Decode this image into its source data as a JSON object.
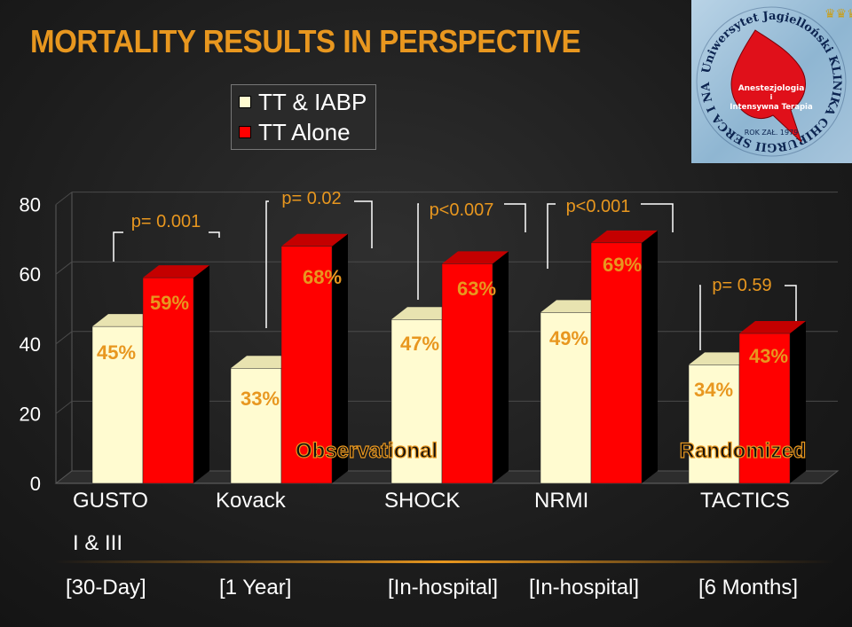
{
  "title": "MORTALITY RESULTS IN PERSPECTIVE",
  "legend": [
    {
      "label": "TT & IABP",
      "color": "#fffbd0"
    },
    {
      "label": "TT Alone",
      "color": "#ff0000"
    }
  ],
  "logo": {
    "ring_text": "Uniwersytet Jagielloński KLINIKA CHIRURGII SERCA I NACZYŃ",
    "line1": "Anestezjologia",
    "line2": "i",
    "line3": "Intensywna Terapia",
    "year": "ROK ZAŁ. 1979"
  },
  "chart_data": {
    "type": "bar",
    "title": "",
    "xlabel": "",
    "ylabel": "",
    "ylim": [
      0,
      80
    ],
    "y_ticks": [
      0,
      20,
      40,
      60,
      80
    ],
    "grid": true,
    "legend_position": "top-center",
    "categories": [
      "GUSTO I & III",
      "Kovack",
      "SHOCK",
      "NRMI",
      "TACTICS"
    ],
    "category_lines": [
      [
        "GUSTO",
        "I & III"
      ],
      [
        "Kovack"
      ],
      [
        "SHOCK"
      ],
      [
        "NRMI"
      ],
      [
        "TACTICS"
      ]
    ],
    "periods": [
      "[30-Day]",
      "[1 Year]",
      "[In-hospital]",
      "[In-hospital]",
      "[6 Months]"
    ],
    "series": [
      {
        "name": "TT & IABP",
        "values": [
          45,
          33,
          47,
          49,
          34
        ],
        "labels": [
          "45%",
          "33%",
          "47%",
          "49%",
          "34%"
        ],
        "color": "#fffbd0"
      },
      {
        "name": "TT Alone",
        "values": [
          59,
          68,
          63,
          69,
          43
        ],
        "labels": [
          "59%",
          "68%",
          "63%",
          "69%",
          "43%"
        ],
        "color": "#ff0000"
      }
    ],
    "p_values": [
      "p= 0.001",
      "p= 0.02",
      "p<0.007",
      "p<0.001",
      "p= 0.59"
    ],
    "annotations": [
      "Observational",
      "Randomized"
    ]
  }
}
